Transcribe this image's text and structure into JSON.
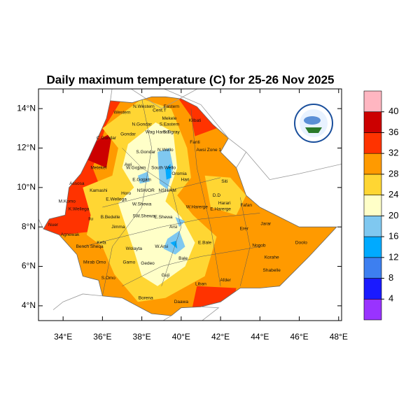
{
  "chart_data": {
    "type": "map",
    "title": "Daily maximum temperature (C) for 25-26 Nov 2025",
    "xlim": [
      32.75,
      48.15
    ],
    "ylim": [
      3.25,
      15
    ],
    "xticks": [
      {
        "value": 34,
        "label": "34°E"
      },
      {
        "value": 36,
        "label": "36°E"
      },
      {
        "value": 38,
        "label": "38°E"
      },
      {
        "value": 40,
        "label": "40°E"
      },
      {
        "value": 42,
        "label": "42°E"
      },
      {
        "value": 44,
        "label": "44°E"
      },
      {
        "value": 46,
        "label": "46°E"
      },
      {
        "value": 48,
        "label": "48°E"
      }
    ],
    "yticks": [
      {
        "value": 4,
        "label": "4°N"
      },
      {
        "value": 6,
        "label": "6°N"
      },
      {
        "value": 8,
        "label": "8°N"
      },
      {
        "value": 10,
        "label": "10°N"
      },
      {
        "value": 12,
        "label": "12°N"
      },
      {
        "value": 14,
        "label": "14°N"
      }
    ],
    "colorbar": {
      "levels": [
        4,
        8,
        12,
        16,
        20,
        24,
        28,
        32,
        36,
        40
      ],
      "colors": [
        "#9933ff",
        "#1a1aff",
        "#3d7ff0",
        "#00aaff",
        "#7fc8f0",
        "#ffffc8",
        "#ffd633",
        "#ff9a00",
        "#ff3300",
        "#cc0000",
        "#ffb6c1"
      ]
    },
    "regions": [
      {
        "name": "N.Western",
        "lon": 38.1,
        "lat": 14.1
      },
      {
        "name": "Cent.T",
        "lon": 38.9,
        "lat": 13.9
      },
      {
        "name": "Eastern",
        "lon": 39.5,
        "lat": 14.1
      },
      {
        "name": "Western",
        "lon": 37.0,
        "lat": 13.8
      },
      {
        "name": "Mekele",
        "lon": 39.4,
        "lat": 13.5
      },
      {
        "name": "S.Eastern",
        "lon": 39.4,
        "lat": 13.2
      },
      {
        "name": "Kilbati",
        "lon": 40.7,
        "lat": 13.4
      },
      {
        "name": "N.Gondar",
        "lon": 38.0,
        "lat": 13.2
      },
      {
        "name": "Wag Hamra",
        "lon": 38.8,
        "lat": 12.8
      },
      {
        "name": "S.Tigray",
        "lon": 39.5,
        "lat": 12.8
      },
      {
        "name": "Gondar",
        "lon": 37.3,
        "lat": 12.7
      },
      {
        "name": "C.Gondar",
        "lon": 36.2,
        "lat": 12.5
      },
      {
        "name": "Fanti",
        "lon": 40.7,
        "lat": 12.3
      },
      {
        "name": "Awsi Zone 1",
        "lon": 41.4,
        "lat": 11.9
      },
      {
        "name": "S.Gondar",
        "lon": 38.2,
        "lat": 11.8
      },
      {
        "name": "N.Wello",
        "lon": 39.2,
        "lat": 11.9
      },
      {
        "name": "Awi",
        "lon": 37.3,
        "lat": 11.15
      },
      {
        "name": "W.Gojjam",
        "lon": 37.7,
        "lat": 11.0
      },
      {
        "name": "Metekel",
        "lon": 35.8,
        "lat": 11.0
      },
      {
        "name": "South Wello",
        "lon": 39.1,
        "lat": 11.0
      },
      {
        "name": "Oromia",
        "lon": 39.9,
        "lat": 10.7
      },
      {
        "name": "E.Gojjam",
        "lon": 38.0,
        "lat": 10.4
      },
      {
        "name": "Hari",
        "lon": 40.2,
        "lat": 10.4
      },
      {
        "name": "Siti",
        "lon": 42.2,
        "lat": 10.3
      },
      {
        "name": "Assosa",
        "lon": 34.7,
        "lat": 10.2
      },
      {
        "name": "Kamashi",
        "lon": 35.8,
        "lat": 9.85
      },
      {
        "name": "NSH/OR",
        "lon": 38.2,
        "lat": 9.85
      },
      {
        "name": "NSH/AM",
        "lon": 39.3,
        "lat": 9.85
      },
      {
        "name": "Horo",
        "lon": 37.2,
        "lat": 9.7
      },
      {
        "name": "D.D",
        "lon": 41.8,
        "lat": 9.6
      },
      {
        "name": "Harari",
        "lon": 42.2,
        "lat": 9.2
      },
      {
        "name": "M.Komo",
        "lon": 34.2,
        "lat": 9.3
      },
      {
        "name": "E.Wellega",
        "lon": 36.7,
        "lat": 9.4
      },
      {
        "name": "W.Shewa",
        "lon": 38.0,
        "lat": 9.15
      },
      {
        "name": "W.Harerge",
        "lon": 40.8,
        "lat": 9.0
      },
      {
        "name": "E.Harerge",
        "lon": 42.0,
        "lat": 8.9
      },
      {
        "name": "Fafan",
        "lon": 43.3,
        "lat": 9.1
      },
      {
        "name": "K.Wellega",
        "lon": 34.8,
        "lat": 8.9
      },
      {
        "name": "Ilu",
        "lon": 35.4,
        "lat": 8.4
      },
      {
        "name": "B.Bedelle",
        "lon": 36.4,
        "lat": 8.5
      },
      {
        "name": "SW.Shewa",
        "lon": 38.1,
        "lat": 8.55
      },
      {
        "name": "E.Shewa",
        "lon": 39.1,
        "lat": 8.5
      },
      {
        "name": "Jarar",
        "lon": 44.3,
        "lat": 8.15
      },
      {
        "name": "Agnewak",
        "lon": 34.35,
        "lat": 7.6
      },
      {
        "name": "Jimma",
        "lon": 36.8,
        "lat": 8.0
      },
      {
        "name": "Erer",
        "lon": 43.2,
        "lat": 7.9
      },
      {
        "name": "Arsi",
        "lon": 39.6,
        "lat": 8.0
      },
      {
        "name": "Kefa",
        "lon": 35.95,
        "lat": 7.2
      },
      {
        "name": "Bench Sheqa",
        "lon": 35.35,
        "lat": 7.0
      },
      {
        "name": "W.Arsi",
        "lon": 39.0,
        "lat": 7.0
      },
      {
        "name": "E.Bale",
        "lon": 41.2,
        "lat": 7.2
      },
      {
        "name": "Nogob",
        "lon": 43.95,
        "lat": 7.05
      },
      {
        "name": "Doolo",
        "lon": 46.1,
        "lat": 7.2
      },
      {
        "name": "Wolayta",
        "lon": 37.6,
        "lat": 6.9
      },
      {
        "name": "Gamo",
        "lon": 37.35,
        "lat": 6.2
      },
      {
        "name": "Bale",
        "lon": 40.1,
        "lat": 6.4
      },
      {
        "name": "Korahe",
        "lon": 44.6,
        "lat": 6.45
      },
      {
        "name": "Mirab Omo",
        "lon": 35.6,
        "lat": 6.2
      },
      {
        "name": "Gedeo",
        "lon": 38.3,
        "lat": 6.15
      },
      {
        "name": "Shabelle",
        "lon": 44.6,
        "lat": 5.8
      },
      {
        "name": "S.Omo",
        "lon": 36.3,
        "lat": 5.4
      },
      {
        "name": "Guji",
        "lon": 39.2,
        "lat": 5.55
      },
      {
        "name": "Liban",
        "lon": 41.0,
        "lat": 5.1
      },
      {
        "name": "Afder",
        "lon": 42.25,
        "lat": 5.3
      },
      {
        "name": "Borena",
        "lon": 38.2,
        "lat": 4.4
      },
      {
        "name": "Daawa",
        "lon": 40.0,
        "lat": 4.2
      },
      {
        "name": "Nuer",
        "lon": 33.5,
        "lat": 8.1
      }
    ]
  }
}
